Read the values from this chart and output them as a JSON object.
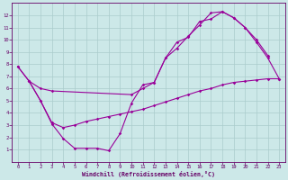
{
  "xlabel": "Windchill (Refroidissement éolien,°C)",
  "bg_color": "#cce8e8",
  "line_color": "#990099",
  "grid_color": "#aacccc",
  "spine_color": "#660066",
  "tick_color": "#660066",
  "xlim": [
    -0.5,
    23.5
  ],
  "ylim": [
    0,
    13
  ],
  "xticks": [
    0,
    1,
    2,
    3,
    4,
    5,
    6,
    7,
    8,
    9,
    10,
    11,
    12,
    13,
    14,
    15,
    16,
    17,
    18,
    19,
    20,
    21,
    22,
    23
  ],
  "yticks": [
    1,
    2,
    3,
    4,
    5,
    6,
    7,
    8,
    9,
    10,
    11,
    12
  ],
  "line1_x": [
    0,
    1,
    2,
    3,
    4,
    5,
    6,
    7,
    8,
    9,
    10,
    11,
    12,
    13,
    14,
    15,
    16,
    17,
    18,
    19,
    20,
    21,
    22
  ],
  "line1_y": [
    7.8,
    6.6,
    5.0,
    3.1,
    1.9,
    1.1,
    1.1,
    1.1,
    0.9,
    2.3,
    4.8,
    6.3,
    6.5,
    8.5,
    9.3,
    10.3,
    11.2,
    12.2,
    12.3,
    11.8,
    11.0,
    10.0,
    8.7
  ],
  "line2_x": [
    0,
    1,
    2,
    3,
    10,
    11,
    12,
    13,
    14,
    15,
    16,
    17,
    18,
    19,
    20,
    21,
    22,
    23
  ],
  "line2_y": [
    7.8,
    6.6,
    6.0,
    5.8,
    5.5,
    6.0,
    6.5,
    8.5,
    9.8,
    10.2,
    11.5,
    11.7,
    12.3,
    11.8,
    11.0,
    9.8,
    8.5,
    6.8
  ],
  "line3_x": [
    1,
    2,
    3,
    4,
    5,
    6,
    7,
    8,
    9,
    10,
    11,
    12,
    13,
    14,
    15,
    16,
    17,
    18,
    19,
    20,
    21,
    22,
    23
  ],
  "line3_y": [
    6.6,
    5.0,
    3.2,
    2.8,
    3.0,
    3.3,
    3.5,
    3.7,
    3.9,
    4.1,
    4.3,
    4.6,
    4.9,
    5.2,
    5.5,
    5.8,
    6.0,
    6.3,
    6.5,
    6.6,
    6.7,
    6.8,
    6.8
  ]
}
